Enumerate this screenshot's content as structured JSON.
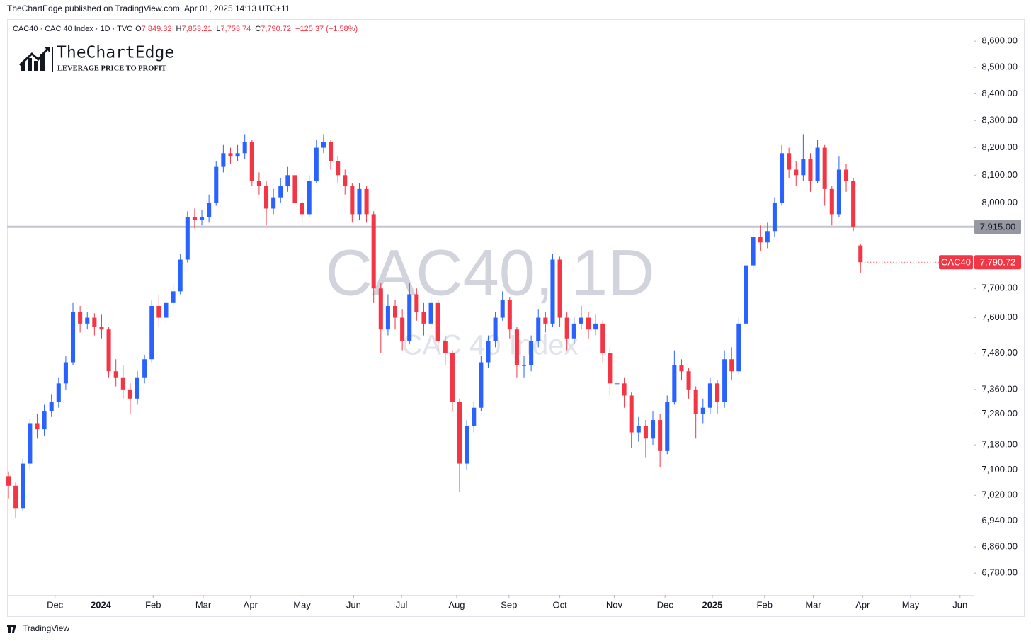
{
  "header": {
    "published": "TheChartEdge published on TradingView.com, Apr 01, 2025 14:13 UTC+11",
    "symbol": "CAC40 · CAC 40 Index · 1D · TVC",
    "o": "O",
    "o_val": "7,849.32",
    "h": "H",
    "h_val": "7,853.21",
    "l": "L",
    "l_val": "7,753.74",
    "c": "C",
    "c_val": "7,790.72",
    "change": "−125.37 (−1.58%)"
  },
  "logo": {
    "name": "TheChartEdge",
    "tagline": "LEVERAGE PRICE TO PROFIT"
  },
  "footer": "TradingView",
  "chart_data": {
    "type": "candlestick",
    "watermark": "CAC40, 1D",
    "watermark_sub": "CAC 40 Index",
    "log_scale": true,
    "up_color": "#2962ff",
    "down_color": "#f23645",
    "ylim": [
      6714,
      8677
    ],
    "yticks": [
      {
        "value": 8600,
        "label": "8,600.00"
      },
      {
        "value": 8500,
        "label": "8,500.00"
      },
      {
        "value": 8400,
        "label": "8,400.00"
      },
      {
        "value": 8300,
        "label": "8,300.00"
      },
      {
        "value": 8200,
        "label": "8,200.00"
      },
      {
        "value": 8100,
        "label": "8,100.00"
      },
      {
        "value": 8000,
        "label": "8,000.00"
      },
      {
        "value": 7700,
        "label": "7,700.00"
      },
      {
        "value": 7600,
        "label": "7,600.00"
      },
      {
        "value": 7480,
        "label": "7,480.00"
      },
      {
        "value": 7360,
        "label": "7,360.00"
      },
      {
        "value": 7280,
        "label": "7,280.00"
      },
      {
        "value": 7180,
        "label": "7,180.00"
      },
      {
        "value": 7100,
        "label": "7,100.00"
      },
      {
        "value": 7020,
        "label": "7,020.00"
      },
      {
        "value": 6940,
        "label": "6,940.00"
      },
      {
        "value": 6860,
        "label": "6,860.00"
      },
      {
        "value": 6780,
        "label": "6,780.00"
      }
    ],
    "xlim": [
      -0.2,
      134.8
    ],
    "xticks": [
      {
        "value": 6.5,
        "label": "Dec"
      },
      {
        "value": 12.9,
        "label": "2024"
      },
      {
        "value": 20.2,
        "label": "Feb"
      },
      {
        "value": 27.2,
        "label": "Mar"
      },
      {
        "value": 33.8,
        "label": "Apr"
      },
      {
        "value": 41.0,
        "label": "May"
      },
      {
        "value": 48.2,
        "label": "Jun"
      },
      {
        "value": 54.9,
        "label": "Jul"
      },
      {
        "value": 62.6,
        "label": "Aug"
      },
      {
        "value": 69.9,
        "label": "Sep"
      },
      {
        "value": 77.0,
        "label": "Oct"
      },
      {
        "value": 84.6,
        "label": "Nov"
      },
      {
        "value": 91.7,
        "label": "Dec"
      },
      {
        "value": 98.3,
        "label": "2025"
      },
      {
        "value": 105.6,
        "label": "Feb"
      },
      {
        "value": 112.4,
        "label": "Mar"
      },
      {
        "value": 119.3,
        "label": "Apr"
      },
      {
        "value": 126.0,
        "label": "May"
      },
      {
        "value": 132.9,
        "label": "Jun"
      }
    ],
    "hline": {
      "value": 7915,
      "label": "7,915.00"
    },
    "price_tag": {
      "name": "CAC40",
      "label": "7,790.72"
    },
    "open": [
      7080,
      7050,
      6980,
      7120,
      7250,
      7230,
      7290,
      7320,
      7380,
      7450,
      7620,
      7580,
      7600,
      7570,
      7560,
      7420,
      7400,
      7360,
      7330,
      7400,
      7460,
      7640,
      7600,
      7650,
      7690,
      7800,
      7950,
      7940,
      7950,
      8000,
      8130,
      8180,
      8170,
      8180,
      8220,
      8080,
      8060,
      7980,
      8020,
      8060,
      8100,
      8000,
      7960,
      8080,
      8200,
      8220,
      8150,
      8100,
      8060,
      7960,
      8050,
      7960,
      7700,
      7560,
      7640,
      7600,
      7520,
      7680,
      7620,
      7580,
      7650,
      7520,
      7480,
      7320,
      7120,
      7240,
      7300,
      7450,
      7520,
      7600,
      7660,
      7560,
      7440,
      7440,
      7520,
      7600,
      7580,
      7800,
      7600,
      7530,
      7580,
      7600,
      7560,
      7580,
      7480,
      7380,
      7380,
      7340,
      7220,
      7240,
      7200,
      7260,
      7160,
      7320,
      7440,
      7420,
      7360,
      7280,
      7300,
      7380,
      7320,
      7460,
      7420,
      7580,
      7780,
      7880,
      7860,
      7900,
      8000,
      8180,
      8120,
      8100,
      8160,
      8080,
      8200,
      8050,
      7960,
      8120,
      8080,
      7849.32
    ],
    "high": [
      7095,
      7060,
      7135,
      7265,
      7280,
      7310,
      7345,
      7400,
      7470,
      7650,
      7640,
      7620,
      7615,
      7610,
      7570,
      7460,
      7440,
      7380,
      7420,
      7475,
      7660,
      7680,
      7670,
      7710,
      7820,
      7970,
      7980,
      7975,
      8030,
      8150,
      8210,
      8200,
      8210,
      8250,
      8230,
      8110,
      8080,
      8050,
      8090,
      8130,
      8110,
      8020,
      8100,
      8230,
      8250,
      8230,
      8170,
      8120,
      8070,
      8070,
      8060,
      7970,
      7720,
      7680,
      7660,
      7630,
      7720,
      7700,
      7650,
      7670,
      7660,
      7540,
      7490,
      7330,
      7260,
      7320,
      7470,
      7540,
      7620,
      7690,
      7670,
      7570,
      7470,
      7540,
      7630,
      7620,
      7820,
      7810,
      7620,
      7600,
      7640,
      7620,
      7610,
      7590,
      7500,
      7420,
      7400,
      7350,
      7270,
      7260,
      7290,
      7280,
      7340,
      7490,
      7460,
      7430,
      7370,
      7330,
      7400,
      7390,
      7490,
      7500,
      7600,
      7800,
      7910,
      7920,
      7930,
      8020,
      8210,
      8200,
      8150,
      8250,
      8180,
      8230,
      8210,
      8060,
      8170,
      8140,
      8090,
      7853.21
    ],
    "low": [
      7010,
      6950,
      6970,
      7100,
      7200,
      7210,
      7270,
      7300,
      7360,
      7440,
      7550,
      7560,
      7540,
      7530,
      7400,
      7370,
      7330,
      7280,
      7310,
      7380,
      7450,
      7570,
      7580,
      7630,
      7680,
      7790,
      7910,
      7920,
      7930,
      7990,
      8110,
      8140,
      8150,
      8160,
      8060,
      8030,
      7920,
      7960,
      8000,
      8040,
      7970,
      7920,
      7950,
      8070,
      8180,
      8120,
      8070,
      8030,
      7930,
      7940,
      7930,
      7650,
      7480,
      7540,
      7560,
      7490,
      7510,
      7590,
      7540,
      7560,
      7490,
      7440,
      7290,
      7030,
      7100,
      7220,
      7290,
      7430,
      7500,
      7590,
      7530,
      7400,
      7400,
      7420,
      7500,
      7550,
      7570,
      7570,
      7490,
      7510,
      7560,
      7530,
      7540,
      7450,
      7340,
      7350,
      7300,
      7170,
      7190,
      7140,
      7180,
      7110,
      7150,
      7310,
      7390,
      7330,
      7200,
      7250,
      7280,
      7280,
      7300,
      7390,
      7410,
      7570,
      7760,
      7830,
      7840,
      7880,
      7990,
      8090,
      8060,
      8080,
      8040,
      8070,
      7990,
      7920,
      7950,
      8040,
      7900,
      7753.74
    ],
    "close": [
      7050,
      6980,
      7120,
      7250,
      7230,
      7290,
      7320,
      7380,
      7450,
      7620,
      7580,
      7600,
      7570,
      7560,
      7420,
      7400,
      7360,
      7330,
      7400,
      7460,
      7640,
      7600,
      7650,
      7690,
      7800,
      7950,
      7940,
      7950,
      8000,
      8130,
      8180,
      8170,
      8180,
      8220,
      8080,
      8060,
      7980,
      8020,
      8060,
      8100,
      8000,
      7960,
      8080,
      8200,
      8220,
      8150,
      8100,
      8060,
      7960,
      8050,
      7960,
      7700,
      7560,
      7640,
      7600,
      7520,
      7680,
      7620,
      7580,
      7650,
      7520,
      7480,
      7320,
      7120,
      7240,
      7300,
      7450,
      7520,
      7600,
      7660,
      7560,
      7440,
      7440,
      7520,
      7600,
      7580,
      7800,
      7600,
      7530,
      7580,
      7600,
      7560,
      7580,
      7480,
      7380,
      7380,
      7340,
      7220,
      7240,
      7200,
      7260,
      7160,
      7320,
      7440,
      7420,
      7360,
      7280,
      7300,
      7380,
      7320,
      7460,
      7420,
      7580,
      7780,
      7880,
      7860,
      7900,
      8000,
      8180,
      8120,
      8100,
      8160,
      8080,
      8200,
      8050,
      7960,
      8120,
      8080,
      7916.09,
      7790.72
    ]
  }
}
